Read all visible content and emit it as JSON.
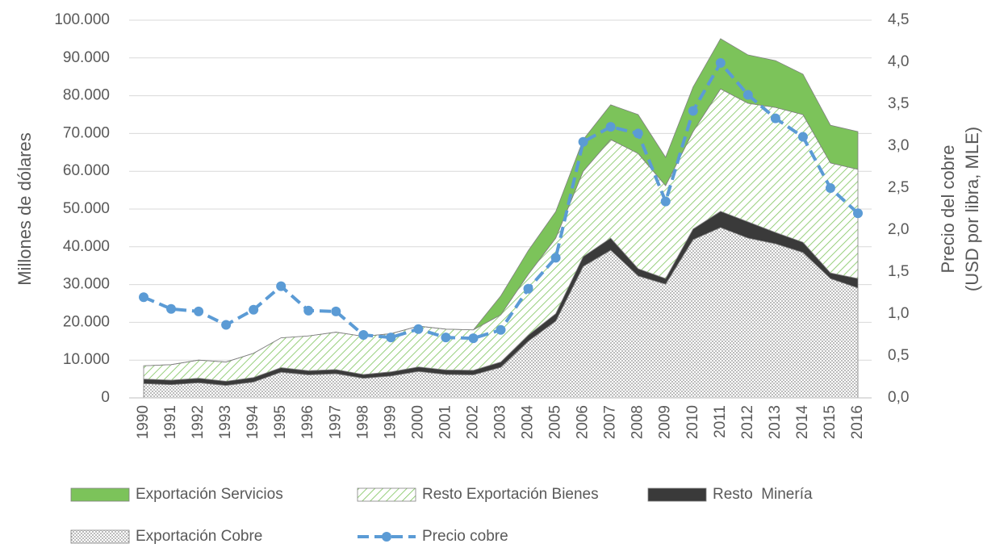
{
  "chart_data": {
    "type": "stacked_area_line",
    "categories": [
      "1990",
      "1991",
      "1992",
      "1993",
      "1994",
      "1995",
      "1996",
      "1997",
      "1998",
      "1999",
      "2000",
      "2001",
      "2002",
      "2003",
      "2004",
      "2005",
      "2006",
      "2007",
      "2008",
      "2009",
      "2010",
      "2011",
      "2012",
      "2013",
      "2014",
      "2015",
      "2016"
    ],
    "ylabel": "Millones de dólares",
    "y2label": [
      "Precio del cobre",
      "(USD por libra, MLE)"
    ],
    "ylim": [
      0,
      100000
    ],
    "yticks": [
      0,
      {
        "value": 10000,
        "label": "10.000"
      },
      {
        "value": 20000,
        "label": "20.000"
      },
      {
        "value": 30000,
        "label": "30.000"
      },
      {
        "value": 40000,
        "label": "40.000"
      },
      {
        "value": 50000,
        "label": "50.000"
      },
      {
        "value": 60000,
        "label": "60.000"
      },
      {
        "value": 70000,
        "label": "70.000"
      },
      {
        "value": 80000,
        "label": "80.000"
      },
      {
        "value": 90000,
        "label": "90.000"
      },
      {
        "value": 100000,
        "label": "100.000"
      }
    ],
    "y2lim": [
      0,
      4.5
    ],
    "y2ticks": [
      {
        "value": 0,
        "label": "0,0"
      },
      {
        "value": 0.5,
        "label": "0,5"
      },
      {
        "value": 1,
        "label": "1,0"
      },
      {
        "value": 1.5,
        "label": "1,5"
      },
      {
        "value": 2,
        "label": "2,0"
      },
      {
        "value": 2.5,
        "label": "2,5"
      },
      {
        "value": 3,
        "label": "3,0"
      },
      {
        "value": 3.5,
        "label": "3,5"
      },
      {
        "value": 4,
        "label": "4,0"
      },
      {
        "value": 4.5,
        "label": "4,5"
      }
    ],
    "grid": true,
    "legend": "bottom",
    "series": [
      {
        "name": "Exportación Servicios",
        "color": "#7cc35a",
        "pattern": "solid",
        "values": [
          0,
          0,
          0,
          0,
          0,
          0,
          0,
          0,
          0,
          0,
          0,
          0,
          0,
          5000,
          6300,
          7000,
          8400,
          9200,
          10300,
          7500,
          11800,
          13300,
          12800,
          12400,
          10700,
          10000,
          10000
        ]
      },
      {
        "name": "Resto Exportación Bienes",
        "color": "#7cc35a",
        "pattern": "hatch",
        "values": [
          3500,
          4100,
          4800,
          5100,
          6400,
          7900,
          9200,
          9900,
          10100,
          10100,
          10800,
          10800,
          10700,
          12500,
          16100,
          20000,
          22600,
          26100,
          30500,
          24600,
          25800,
          32400,
          31400,
          33100,
          33800,
          29100,
          28900
        ]
      },
      {
        "name": "Resto  Minería",
        "color": "#3a3a3a",
        "pattern": "solid",
        "values": [
          1200,
          1200,
          1200,
          1100,
          1200,
          1200,
          1100,
          1100,
          1000,
          1100,
          1200,
          1200,
          1200,
          1400,
          1600,
          2000,
          2600,
          3200,
          1900,
          1500,
          2800,
          4300,
          4300,
          3000,
          2700,
          1500,
          2500
        ]
      },
      {
        "name": "Exportación Cobre",
        "color": "#8c8c8c",
        "pattern": "dots",
        "values": [
          3800,
          3500,
          4000,
          3300,
          4200,
          6800,
          6100,
          6400,
          5200,
          5800,
          7000,
          6200,
          6100,
          8100,
          15000,
          20300,
          34800,
          39100,
          32300,
          30100,
          41900,
          45100,
          42300,
          40800,
          38500,
          31600,
          29100
        ]
      },
      {
        "name": "Precio cobre",
        "color": "#5b9bd5",
        "axis": "y2",
        "dashed": true,
        "values": [
          1.2,
          1.06,
          1.03,
          0.87,
          1.05,
          1.33,
          1.04,
          1.03,
          0.75,
          0.72,
          0.82,
          0.72,
          0.71,
          0.81,
          1.3,
          1.67,
          3.05,
          3.23,
          3.15,
          2.34,
          3.42,
          3.99,
          3.61,
          3.33,
          3.11,
          2.5,
          2.2
        ]
      }
    ]
  }
}
